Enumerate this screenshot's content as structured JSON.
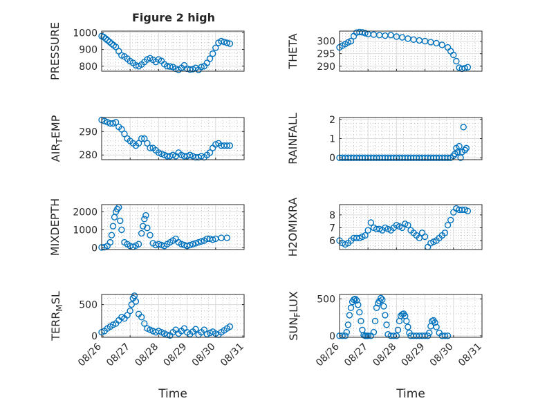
{
  "figure": {
    "title": "Figure 2 high",
    "marker_color": "#0072BD",
    "xlabel": "Time",
    "xticks": [
      "08/26",
      "08/27",
      "08/28",
      "08/29",
      "08/30",
      "08/31"
    ]
  },
  "chart_data": [
    {
      "type": "scatter",
      "id": "pressure",
      "ylabel": "PRESSURE",
      "title": "Figure 2 high",
      "xlim": [
        0,
        5
      ],
      "ylim": [
        770,
        1010
      ],
      "yticks": [
        800,
        900,
        1000
      ],
      "grid": true,
      "x": [
        0.0,
        0.07,
        0.14,
        0.21,
        0.28,
        0.35,
        0.42,
        0.5,
        0.6,
        0.7,
        0.8,
        0.9,
        1.0,
        1.1,
        1.2,
        1.3,
        1.4,
        1.5,
        1.6,
        1.7,
        1.8,
        1.9,
        2.0,
        2.1,
        2.2,
        2.3,
        2.4,
        2.5,
        2.6,
        2.7,
        2.8,
        2.9,
        3.0,
        3.1,
        3.2,
        3.3,
        3.4,
        3.5,
        3.6,
        3.7,
        3.8,
        3.9,
        4.0,
        4.1,
        4.2,
        4.3,
        4.4,
        4.5
      ],
      "y": [
        980,
        975,
        965,
        955,
        945,
        935,
        925,
        915,
        890,
        865,
        858,
        845,
        830,
        820,
        805,
        800,
        810,
        825,
        840,
        848,
        838,
        825,
        840,
        832,
        812,
        800,
        798,
        795,
        785,
        778,
        790,
        805,
        785,
        780,
        782,
        790,
        778,
        795,
        800,
        820,
        845,
        875,
        910,
        940,
        950,
        945,
        940,
        935
      ]
    },
    {
      "type": "scatter",
      "id": "theta",
      "ylabel": "THETA",
      "xlim": [
        0,
        5
      ],
      "ylim": [
        288,
        304
      ],
      "yticks": [
        290,
        295,
        300
      ],
      "grid": true,
      "x": [
        0.0,
        0.1,
        0.2,
        0.3,
        0.4,
        0.5,
        0.6,
        0.7,
        0.8,
        0.9,
        1.0,
        1.2,
        1.4,
        1.6,
        1.8,
        2.0,
        2.2,
        2.4,
        2.6,
        2.8,
        3.0,
        3.2,
        3.4,
        3.6,
        3.8,
        3.9,
        4.0,
        4.1,
        4.2,
        4.3,
        4.4,
        4.5
      ],
      "y": [
        297.5,
        298.2,
        298.8,
        299.5,
        300,
        302,
        303.4,
        303.6,
        303.5,
        303.2,
        302.8,
        302.6,
        302.4,
        302.2,
        302.4,
        301.8,
        301.5,
        301,
        300.6,
        300.3,
        300,
        299.6,
        299.2,
        298.5,
        297.5,
        296,
        294.5,
        292,
        289.4,
        289,
        289.2,
        289.6
      ]
    },
    {
      "type": "scatter",
      "id": "air_temp",
      "ylabel": "AIR_TEMP",
      "ylabel_base": "AIR",
      "ylabel_sub": "T",
      "ylabel_tail": "EMP",
      "xlim": [
        0,
        5
      ],
      "ylim": [
        278,
        296
      ],
      "yticks": [
        280,
        290
      ],
      "grid": true,
      "x": [
        0.0,
        0.1,
        0.2,
        0.3,
        0.4,
        0.5,
        0.6,
        0.7,
        0.8,
        0.9,
        1.0,
        1.1,
        1.2,
        1.3,
        1.4,
        1.5,
        1.6,
        1.7,
        1.8,
        1.9,
        2.0,
        2.1,
        2.2,
        2.3,
        2.4,
        2.5,
        2.6,
        2.7,
        2.8,
        2.9,
        3.0,
        3.1,
        3.2,
        3.3,
        3.4,
        3.5,
        3.6,
        3.7,
        3.8,
        3.9,
        4.0,
        4.1,
        4.2,
        4.3,
        4.4,
        4.5
      ],
      "y": [
        295,
        294.5,
        294,
        293.5,
        293.5,
        294,
        292,
        291,
        289,
        287,
        286,
        285,
        284,
        285,
        287,
        287,
        285,
        283,
        283,
        282,
        281,
        280.5,
        280,
        279.5,
        279.5,
        280,
        279.5,
        281,
        280,
        279.5,
        279.5,
        280,
        279.5,
        279,
        279,
        279.5,
        279,
        280,
        281,
        283,
        284.5,
        285,
        284,
        284,
        284,
        284
      ]
    },
    {
      "type": "scatter",
      "id": "rainfall",
      "ylabel": "RAINFALL",
      "xlim": [
        0,
        5
      ],
      "ylim": [
        -0.1,
        2.1
      ],
      "yticks": [
        0,
        1,
        2
      ],
      "grid": true,
      "x": [
        0.0,
        0.1,
        0.2,
        0.3,
        0.4,
        0.5,
        0.6,
        0.7,
        0.8,
        0.9,
        1.0,
        1.1,
        1.2,
        1.3,
        1.4,
        1.5,
        1.6,
        1.7,
        1.8,
        1.9,
        2.0,
        2.1,
        2.2,
        2.3,
        2.4,
        2.5,
        2.6,
        2.7,
        2.8,
        2.9,
        3.0,
        3.1,
        3.2,
        3.3,
        3.4,
        3.5,
        3.6,
        3.7,
        3.8,
        3.9,
        4.0,
        4.05,
        4.1,
        4.15,
        4.2,
        4.25,
        4.3,
        4.35,
        4.4,
        4.45
      ],
      "y": [
        0,
        0,
        0,
        0,
        0,
        0,
        0,
        0,
        0,
        0,
        0,
        0,
        0,
        0,
        0,
        0,
        0,
        0,
        0,
        0,
        0,
        0,
        0,
        0,
        0,
        0,
        0,
        0,
        0,
        0,
        0,
        0,
        0,
        0,
        0,
        0,
        0,
        0,
        0,
        0,
        0.1,
        0.2,
        0.5,
        0.3,
        0.6,
        0,
        0.3,
        1.6,
        0.4,
        0.5
      ]
    },
    {
      "type": "scatter",
      "id": "mixdepth",
      "ylabel": "MIXDEPTH",
      "xlim": [
        0,
        5
      ],
      "ylim": [
        -100,
        2400
      ],
      "yticks": [
        0,
        1000,
        2000
      ],
      "grid": true,
      "x": [
        0.0,
        0.1,
        0.2,
        0.3,
        0.35,
        0.4,
        0.45,
        0.5,
        0.55,
        0.6,
        0.65,
        0.7,
        0.8,
        0.9,
        1.0,
        1.1,
        1.2,
        1.3,
        1.4,
        1.45,
        1.5,
        1.55,
        1.6,
        1.7,
        1.8,
        1.9,
        2.0,
        2.1,
        2.2,
        2.3,
        2.4,
        2.5,
        2.6,
        2.7,
        2.8,
        2.9,
        3.0,
        3.1,
        3.2,
        3.3,
        3.4,
        3.5,
        3.6,
        3.7,
        3.8,
        3.9,
        4.0,
        4.2,
        4.4
      ],
      "y": [
        20,
        30,
        100,
        300,
        700,
        1200,
        1700,
        2000,
        2150,
        2250,
        1500,
        1000,
        300,
        200,
        100,
        50,
        120,
        200,
        800,
        1200,
        1600,
        1800,
        1100,
        700,
        250,
        150,
        200,
        150,
        100,
        200,
        300,
        400,
        500,
        300,
        200,
        150,
        100,
        150,
        200,
        250,
        300,
        350,
        400,
        500,
        500,
        450,
        500,
        550,
        550
      ]
    },
    {
      "type": "scatter",
      "id": "h2omixra",
      "ylabel": "H2OMIXRA",
      "xlim": [
        0,
        5
      ],
      "ylim": [
        5.3,
        8.8
      ],
      "yticks": [
        6,
        7,
        8
      ],
      "grid": true,
      "x": [
        0.0,
        0.1,
        0.2,
        0.3,
        0.4,
        0.5,
        0.6,
        0.7,
        0.8,
        0.9,
        1.0,
        1.1,
        1.2,
        1.3,
        1.4,
        1.5,
        1.6,
        1.7,
        1.8,
        1.9,
        2.0,
        2.1,
        2.2,
        2.3,
        2.4,
        2.5,
        2.6,
        2.7,
        2.8,
        2.9,
        3.0,
        3.1,
        3.2,
        3.3,
        3.4,
        3.5,
        3.6,
        3.7,
        3.8,
        3.9,
        4.0,
        4.1,
        4.2,
        4.3,
        4.4,
        4.5
      ],
      "y": [
        6,
        5.8,
        5.7,
        5.8,
        6,
        6.2,
        6.2,
        6.2,
        6.3,
        6.4,
        6.8,
        7.4,
        7,
        6.9,
        6.9,
        6.8,
        7,
        6.9,
        6.8,
        7,
        7.2,
        7.1,
        7,
        7.3,
        7.2,
        6.8,
        6.6,
        6.4,
        6.2,
        6.6,
        6.3,
        5.5,
        5.8,
        5.9,
        6,
        6.2,
        6.4,
        6.6,
        7.2,
        7.6,
        8.2,
        8.5,
        8.4,
        8.4,
        8.4,
        8.3
      ]
    },
    {
      "type": "scatter",
      "id": "terr_msl",
      "ylabel": "TERR_MSL",
      "ylabel_base": "TERR",
      "ylabel_sub": "M",
      "ylabel_tail": "SL",
      "xlim": [
        0,
        5
      ],
      "ylim": [
        -20,
        660
      ],
      "yticks": [
        0,
        500
      ],
      "grid": true,
      "x": [
        0.0,
        0.1,
        0.2,
        0.3,
        0.4,
        0.5,
        0.6,
        0.7,
        0.8,
        0.9,
        1.0,
        1.05,
        1.1,
        1.15,
        1.2,
        1.3,
        1.4,
        1.5,
        1.6,
        1.7,
        1.8,
        1.9,
        2.0,
        2.1,
        2.2,
        2.3,
        2.4,
        2.5,
        2.6,
        2.7,
        2.8,
        2.9,
        3.0,
        3.1,
        3.2,
        3.3,
        3.4,
        3.5,
        3.6,
        3.7,
        3.8,
        3.9,
        4.0,
        4.1,
        4.2,
        4.3,
        4.4,
        4.5
      ],
      "y": [
        60,
        80,
        120,
        150,
        180,
        200,
        250,
        300,
        280,
        330,
        400,
        500,
        600,
        640,
        550,
        350,
        300,
        200,
        120,
        100,
        80,
        60,
        80,
        60,
        40,
        20,
        10,
        60,
        100,
        40,
        80,
        120,
        60,
        30,
        70,
        110,
        20,
        60,
        100,
        30,
        50,
        70,
        40,
        20,
        60,
        90,
        120,
        150
      ]
    },
    {
      "type": "scatter",
      "id": "sun_flux",
      "ylabel": "SUN_FLUX",
      "ylabel_base": "SUN",
      "ylabel_sub": "F",
      "ylabel_tail": "LUX",
      "xlim": [
        0,
        5
      ],
      "ylim": [
        -20,
        560
      ],
      "yticks": [
        0,
        500
      ],
      "grid": true,
      "x": [
        0.0,
        0.1,
        0.2,
        0.25,
        0.3,
        0.35,
        0.4,
        0.45,
        0.5,
        0.55,
        0.6,
        0.65,
        0.7,
        0.75,
        0.8,
        0.85,
        0.9,
        0.95,
        1.0,
        1.1,
        1.2,
        1.25,
        1.3,
        1.35,
        1.4,
        1.45,
        1.5,
        1.55,
        1.6,
        1.65,
        1.7,
        1.8,
        1.9,
        2.0,
        2.05,
        2.1,
        2.15,
        2.2,
        2.25,
        2.3,
        2.35,
        2.4,
        2.45,
        2.5,
        2.6,
        2.7,
        2.8,
        2.9,
        3.0,
        3.1,
        3.15,
        3.2,
        3.25,
        3.3,
        3.35,
        3.4,
        3.5,
        3.6,
        3.7,
        3.8
      ],
      "y": [
        0,
        0,
        0,
        50,
        150,
        280,
        380,
        460,
        490,
        500,
        480,
        420,
        320,
        200,
        80,
        10,
        0,
        0,
        0,
        0,
        50,
        200,
        380,
        440,
        470,
        510,
        490,
        400,
        280,
        150,
        20,
        0,
        0,
        0,
        80,
        200,
        270,
        290,
        300,
        270,
        200,
        120,
        40,
        0,
        0,
        0,
        0,
        0,
        0,
        0,
        40,
        130,
        200,
        210,
        180,
        120,
        40,
        0,
        0,
        0
      ]
    }
  ]
}
